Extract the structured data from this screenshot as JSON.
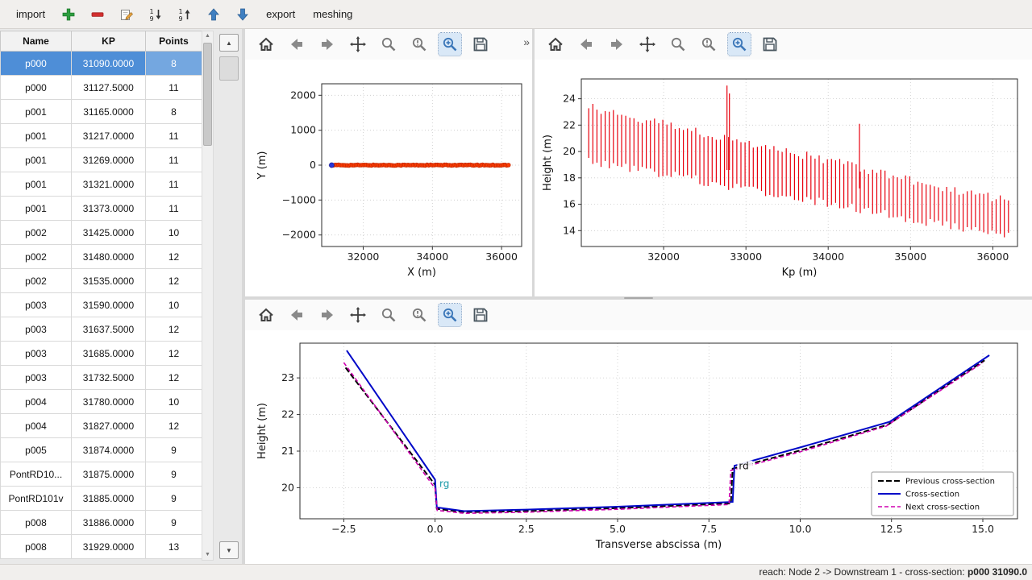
{
  "app_toolbar": {
    "items": [
      {
        "type": "text",
        "label": "import",
        "name": "import-button"
      },
      {
        "type": "icon",
        "icon": "add",
        "name": "add-cross-section-icon"
      },
      {
        "type": "icon",
        "icon": "remove",
        "name": "remove-cross-section-icon"
      },
      {
        "type": "icon",
        "icon": "edit",
        "name": "edit-icon"
      },
      {
        "type": "icon",
        "icon": "sort-asc",
        "name": "sort-ascending-icon"
      },
      {
        "type": "icon",
        "icon": "sort-desc",
        "name": "sort-descending-icon"
      },
      {
        "type": "icon",
        "icon": "move-up",
        "name": "move-up-icon"
      },
      {
        "type": "icon",
        "icon": "move-down",
        "name": "move-down-icon"
      },
      {
        "type": "text",
        "label": "export",
        "name": "export-button"
      },
      {
        "type": "text",
        "label": "meshing",
        "name": "meshing-button"
      }
    ]
  },
  "table": {
    "columns": [
      "Name",
      "KP",
      "Points"
    ],
    "rows": [
      {
        "name": "p000",
        "kp": "31090.0000",
        "points": "8",
        "selected": true
      },
      {
        "name": "p000",
        "kp": "31127.5000",
        "points": "11"
      },
      {
        "name": "p001",
        "kp": "31165.0000",
        "points": "8"
      },
      {
        "name": "p001",
        "kp": "31217.0000",
        "points": "11"
      },
      {
        "name": "p001",
        "kp": "31269.0000",
        "points": "11"
      },
      {
        "name": "p001",
        "kp": "31321.0000",
        "points": "11"
      },
      {
        "name": "p001",
        "kp": "31373.0000",
        "points": "11"
      },
      {
        "name": "p002",
        "kp": "31425.0000",
        "points": "10"
      },
      {
        "name": "p002",
        "kp": "31480.0000",
        "points": "12"
      },
      {
        "name": "p002",
        "kp": "31535.0000",
        "points": "12"
      },
      {
        "name": "p003",
        "kp": "31590.0000",
        "points": "10"
      },
      {
        "name": "p003",
        "kp": "31637.5000",
        "points": "12"
      },
      {
        "name": "p003",
        "kp": "31685.0000",
        "points": "12"
      },
      {
        "name": "p003",
        "kp": "31732.5000",
        "points": "12"
      },
      {
        "name": "p004",
        "kp": "31780.0000",
        "points": "10"
      },
      {
        "name": "p004",
        "kp": "31827.0000",
        "points": "12"
      },
      {
        "name": "p005",
        "kp": "31874.0000",
        "points": "9"
      },
      {
        "name": "PontRD10...",
        "kp": "31875.0000",
        "points": "9"
      },
      {
        "name": "PontRD101v",
        "kp": "31885.0000",
        "points": "9"
      },
      {
        "name": "p008",
        "kp": "31886.0000",
        "points": "9"
      },
      {
        "name": "p008",
        "kp": "31929.0000",
        "points": "13"
      }
    ]
  },
  "scrollbar": {
    "up_glyph": "▲",
    "down_glyph": "▼"
  },
  "plot_toolbar": {
    "overflow": "»",
    "icons": [
      {
        "icon": "home",
        "name": "home-icon"
      },
      {
        "icon": "back",
        "name": "back-icon"
      },
      {
        "icon": "forward",
        "name": "forward-icon"
      },
      {
        "icon": "pan",
        "name": "pan-icon"
      },
      {
        "icon": "zoom",
        "name": "zoom-icon"
      },
      {
        "icon": "zoom-settings",
        "name": "axes-options-icon"
      },
      {
        "icon": "zoom-rect",
        "name": "zoom-rect-icon",
        "active": true
      },
      {
        "icon": "save",
        "name": "save-figure-icon"
      }
    ]
  },
  "status_bar": {
    "prefix": "reach: Node 2 -> Downstream 1 - cross-section: ",
    "value": "p000 31090.0"
  },
  "chart_data": [
    {
      "id": "plan-view",
      "type": "scatter",
      "title": "",
      "xlabel": "X (m)",
      "ylabel": "Y (m)",
      "xlim": [
        30800,
        36580
      ],
      "ylim": [
        -2330,
        2330
      ],
      "xticks": [
        32000,
        34000,
        36000
      ],
      "xtick_labels": [
        "32000",
        "34000",
        "36000"
      ],
      "yticks": [
        -2000,
        -1000,
        0,
        1000,
        2000
      ],
      "ytick_labels": [
        "−2000",
        "−1000",
        "0",
        "1000",
        "2000"
      ],
      "grid": true,
      "series": [
        {
          "name": "cross-section positions",
          "marker": "circle",
          "color": "#ff3d00",
          "edge": "#c62800",
          "size": 2.4,
          "gen": {
            "x_start": 31090,
            "x_end": 36200,
            "count": 103,
            "y": 0,
            "y_jitter": 22
          }
        },
        {
          "name": "selected cross-section",
          "marker": "circle",
          "color": "#2b35d8",
          "edge": "#1a1f9c",
          "size": 3,
          "points": [
            [
              31090,
              0
            ]
          ]
        }
      ]
    },
    {
      "id": "longitudinal-profile",
      "type": "vbars",
      "title": "",
      "xlabel": "Kp (m)",
      "ylabel": "Height (m)",
      "xlim": [
        31000,
        36300
      ],
      "ylim": [
        12.8,
        25.5
      ],
      "xticks": [
        32000,
        33000,
        34000,
        35000,
        36000
      ],
      "xtick_labels": [
        "32000",
        "33000",
        "34000",
        "35000",
        "36000"
      ],
      "yticks": [
        14,
        16,
        18,
        20,
        22,
        24
      ],
      "ytick_labels": [
        "14",
        "16",
        "18",
        "20",
        "22",
        "24"
      ],
      "grid": true,
      "bars": {
        "color": "#e8000d",
        "width": 1.2,
        "kp_start": 31090,
        "kp_end": 36190,
        "count": 103,
        "top_start": 23.4,
        "top_end": 16.2,
        "bottom_start": 19.3,
        "bottom_end": 13.6,
        "jitter": 0.35,
        "spikes": [
          {
            "kp": 32770,
            "top": 25.0,
            "bottom": 18.6
          },
          {
            "kp": 32800,
            "top": 24.4,
            "bottom": 18.6
          },
          {
            "kp": 34380,
            "top": 22.1,
            "bottom": 17.2
          }
        ]
      }
    },
    {
      "id": "cross-section-profile",
      "type": "line",
      "title": "",
      "xlabel": "Transverse abscissa (m)",
      "ylabel": "Height (m)",
      "xlim": [
        -3.7,
        15.95
      ],
      "ylim": [
        19.15,
        23.95
      ],
      "xticks": [
        -2.5,
        0,
        2.5,
        5,
        7.5,
        10,
        12.5,
        15
      ],
      "xtick_labels": [
        "−2.5",
        "0.0",
        "2.5",
        "5.0",
        "7.5",
        "10.0",
        "12.5",
        "15.0"
      ],
      "yticks": [
        20,
        21,
        22,
        23
      ],
      "ytick_labels": [
        "20",
        "21",
        "22",
        "23"
      ],
      "grid": true,
      "series": [
        {
          "name": "Previous cross-section",
          "color": "#000000",
          "dash": "7,3",
          "width": 2,
          "points": [
            [
              -2.45,
              23.28
            ],
            [
              0,
              20.08
            ],
            [
              0.05,
              19.42
            ],
            [
              0.8,
              19.33
            ],
            [
              2.5,
              19.36
            ],
            [
              5,
              19.44
            ],
            [
              8.1,
              19.57
            ],
            [
              8.15,
              20.52
            ],
            [
              10,
              21.02
            ],
            [
              12.4,
              21.72
            ],
            [
              15.05,
              23.48
            ]
          ]
        },
        {
          "name": "Cross-section",
          "color": "#0008c8",
          "dash": null,
          "width": 2,
          "points": [
            [
              -2.42,
              23.75
            ],
            [
              0,
              20.22
            ],
            [
              0.05,
              19.46
            ],
            [
              0.8,
              19.36
            ],
            [
              2.5,
              19.4
            ],
            [
              5,
              19.48
            ],
            [
              8.15,
              19.61
            ],
            [
              8.2,
              20.6
            ],
            [
              10,
              21.1
            ],
            [
              12.45,
              21.8
            ],
            [
              15.18,
              23.62
            ]
          ]
        },
        {
          "name": "Next cross-section",
          "color": "#cf00b0",
          "dash": "5,3",
          "width": 1.6,
          "points": [
            [
              -2.5,
              23.42
            ],
            [
              0,
              19.98
            ],
            [
              0.06,
              19.38
            ],
            [
              0.8,
              19.3
            ],
            [
              2.5,
              19.33
            ],
            [
              5,
              19.41
            ],
            [
              8.05,
              19.54
            ],
            [
              8.1,
              20.47
            ],
            [
              10,
              20.98
            ],
            [
              12.35,
              21.68
            ],
            [
              15,
              23.42
            ]
          ]
        }
      ],
      "annotations": [
        {
          "text": "rg",
          "x": 0.12,
          "y": 20.02,
          "color": "#1899a8",
          "bg": null
        },
        {
          "text": "rd",
          "x": 8.32,
          "y": 20.5,
          "color": "#111111",
          "bg": "#ffffff"
        }
      ],
      "legend": {
        "position": "lower-right",
        "entries": [
          "Previous cross-section",
          "Cross-section",
          "Next cross-section"
        ]
      }
    }
  ]
}
